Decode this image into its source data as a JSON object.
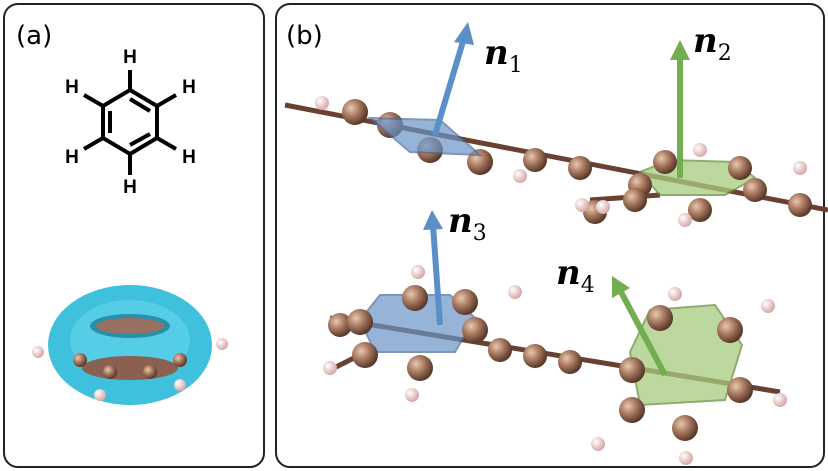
{
  "panels": [
    {
      "label": "(a)",
      "atoms": [
        "H",
        "H",
        "H",
        "H",
        "H",
        "H"
      ]
    },
    {
      "label": "(b)",
      "vectors": [
        {
          "symbol": "n",
          "subscript": "1"
        },
        {
          "symbol": "n",
          "subscript": "2"
        },
        {
          "symbol": "n",
          "subscript": "3"
        },
        {
          "symbol": "n",
          "subscript": "4"
        }
      ]
    }
  ]
}
